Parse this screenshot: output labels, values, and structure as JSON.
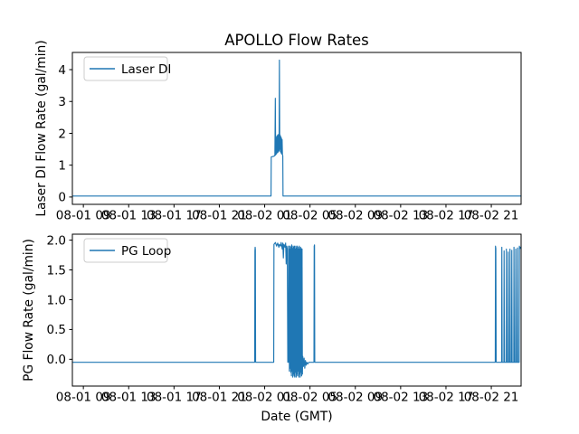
{
  "figure": {
    "title": "APOLLO Flow Rates",
    "xlabel": "Date (GMT)",
    "background_color": "#ffffff",
    "line_color": "#1f77b4",
    "spine_color": "#000000",
    "legend_edge_color": "#cccccc"
  },
  "chart_data": [
    {
      "type": "line",
      "name": "laser-di-subplot",
      "title": "APOLLO Flow Rates",
      "ylabel": "Laser DI Flow Rate (gal/min)",
      "xlabel": "",
      "legend": [
        {
          "label": "Laser DI",
          "color": "#1f77b4"
        }
      ],
      "legend_position": "upper left",
      "grid": false,
      "x_unit": "hours since 08-01 00:00 GMT",
      "xlim": [
        8.03,
        47.63
      ],
      "ylim": [
        -0.23,
        4.54
      ],
      "xticks": [
        9,
        13,
        17,
        21,
        25,
        29,
        33,
        37,
        41,
        45
      ],
      "xtick_labels": [
        "08-01 09",
        "08-01 13",
        "08-01 17",
        "08-01 21",
        "08-02 01",
        "08-02 05",
        "08-02 09",
        "08-02 13",
        "08-02 17",
        "08-02 21"
      ],
      "yticks": [
        0,
        1,
        2,
        3,
        4
      ],
      "ytick_labels": [
        "0",
        "1",
        "2",
        "3",
        "4"
      ],
      "series": [
        {
          "name": "Laser DI",
          "color": "#1f77b4",
          "points": [
            [
              8.03,
              0.03
            ],
            [
              25.56,
              0.03
            ],
            [
              25.58,
              1.26
            ],
            [
              25.8,
              1.28
            ],
            [
              25.9,
              1.3
            ],
            [
              25.94,
              3.1
            ],
            [
              25.97,
              1.32
            ],
            [
              26.0,
              1.85
            ],
            [
              26.03,
              1.35
            ],
            [
              26.06,
              1.9
            ],
            [
              26.09,
              1.38
            ],
            [
              26.12,
              1.93
            ],
            [
              26.15,
              1.4
            ],
            [
              26.18,
              1.96
            ],
            [
              26.21,
              1.42
            ],
            [
              26.24,
              1.9
            ],
            [
              26.27,
              1.45
            ],
            [
              26.3,
              4.3
            ],
            [
              26.33,
              1.5
            ],
            [
              26.36,
              1.95
            ],
            [
              26.39,
              1.42
            ],
            [
              26.42,
              1.9
            ],
            [
              26.45,
              1.38
            ],
            [
              26.48,
              1.85
            ],
            [
              26.51,
              1.35
            ],
            [
              26.54,
              1.8
            ],
            [
              26.57,
              1.32
            ],
            [
              26.6,
              1.3
            ],
            [
              26.62,
              0.03
            ],
            [
              47.63,
              0.03
            ]
          ]
        }
      ]
    },
    {
      "type": "line",
      "name": "pg-loop-subplot",
      "title": "",
      "ylabel": "PG Flow Rate (gal/min)",
      "xlabel": "Date (GMT)",
      "legend": [
        {
          "label": "PG Loop",
          "color": "#1f77b4"
        }
      ],
      "legend_position": "upper left",
      "grid": false,
      "x_unit": "hours since 08-01 00:00 GMT",
      "xlim": [
        8.03,
        47.63
      ],
      "ylim": [
        -0.45,
        2.1
      ],
      "xticks": [
        9,
        13,
        17,
        21,
        25,
        29,
        33,
        37,
        41,
        45
      ],
      "xtick_labels": [
        "08-01 09",
        "08-01 13",
        "08-01 17",
        "08-01 21",
        "08-02 01",
        "08-02 05",
        "08-02 09",
        "08-02 13",
        "08-02 17",
        "08-02 21"
      ],
      "yticks": [
        0.0,
        0.5,
        1.0,
        1.5,
        2.0
      ],
      "ytick_labels": [
        "0.0",
        "0.5",
        "1.0",
        "1.5",
        "2.0"
      ],
      "series": [
        {
          "name": "PG Loop",
          "color": "#1f77b4",
          "points": [
            [
              8.03,
              -0.05
            ],
            [
              24.12,
              -0.05
            ],
            [
              24.14,
              1.82
            ],
            [
              24.16,
              1.88
            ],
            [
              24.18,
              1.84
            ],
            [
              24.2,
              -0.05
            ],
            [
              25.8,
              -0.05
            ],
            [
              25.82,
              1.93
            ],
            [
              25.95,
              1.96
            ],
            [
              26.05,
              1.9
            ],
            [
              26.15,
              1.95
            ],
            [
              26.25,
              1.88
            ],
            [
              26.3,
              1.93
            ],
            [
              26.4,
              1.9
            ],
            [
              26.45,
              1.96
            ],
            [
              26.55,
              1.85
            ],
            [
              26.6,
              1.95
            ],
            [
              26.65,
              1.7
            ],
            [
              26.7,
              1.93
            ],
            [
              26.8,
              1.88
            ],
            [
              26.85,
              1.95
            ],
            [
              26.9,
              1.6
            ],
            [
              26.95,
              1.9
            ],
            [
              27.0,
              1.85
            ],
            [
              27.04,
              -0.05
            ],
            [
              27.09,
              -0.05
            ],
            [
              27.12,
              1.9
            ],
            [
              27.15,
              1.9
            ],
            [
              27.18,
              -0.2
            ],
            [
              27.21,
              1.85
            ],
            [
              27.24,
              -0.15
            ],
            [
              27.27,
              1.9
            ],
            [
              27.3,
              -0.22
            ],
            [
              27.33,
              1.88
            ],
            [
              27.36,
              -0.28
            ],
            [
              27.39,
              1.92
            ],
            [
              27.42,
              -0.2
            ],
            [
              27.45,
              1.86
            ],
            [
              27.48,
              -0.3
            ],
            [
              27.51,
              1.9
            ],
            [
              27.54,
              -0.25
            ],
            [
              27.57,
              1.88
            ],
            [
              27.6,
              -0.28
            ],
            [
              27.63,
              1.9
            ],
            [
              27.66,
              -0.3
            ],
            [
              27.69,
              1.85
            ],
            [
              27.72,
              -0.22
            ],
            [
              27.75,
              1.9
            ],
            [
              27.78,
              -0.3
            ],
            [
              27.81,
              1.87
            ],
            [
              27.84,
              -0.25
            ],
            [
              27.87,
              1.9
            ],
            [
              27.9,
              -0.28
            ],
            [
              27.93,
              1.85
            ],
            [
              27.96,
              -0.2
            ],
            [
              27.99,
              1.88
            ],
            [
              28.02,
              -0.3
            ],
            [
              28.05,
              1.9
            ],
            [
              28.08,
              -0.25
            ],
            [
              28.11,
              1.85
            ],
            [
              28.14,
              -0.3
            ],
            [
              28.17,
              1.88
            ],
            [
              28.2,
              -0.22
            ],
            [
              28.23,
              1.86
            ],
            [
              28.26,
              -0.28
            ],
            [
              28.3,
              1.85
            ],
            [
              28.33,
              -0.25
            ],
            [
              28.36,
              0.05
            ],
            [
              28.42,
              -0.12
            ],
            [
              28.48,
              0.02
            ],
            [
              28.54,
              -0.15
            ],
            [
              28.6,
              -0.02
            ],
            [
              28.66,
              -0.1
            ],
            [
              28.72,
              -0.05
            ],
            [
              28.8,
              -0.08
            ],
            [
              28.9,
              -0.05
            ],
            [
              29.35,
              -0.05
            ],
            [
              29.37,
              1.9
            ],
            [
              29.4,
              1.92
            ],
            [
              29.42,
              -0.05
            ],
            [
              45.35,
              -0.05
            ],
            [
              45.37,
              1.9
            ],
            [
              45.4,
              1.86
            ],
            [
              45.43,
              -0.05
            ],
            [
              45.91,
              -0.05
            ],
            [
              45.93,
              1.88
            ],
            [
              45.96,
              -0.05
            ],
            [
              46.11,
              -0.05
            ],
            [
              46.13,
              1.82
            ],
            [
              46.16,
              -0.05
            ],
            [
              46.31,
              -0.05
            ],
            [
              46.33,
              1.85
            ],
            [
              46.36,
              -0.05
            ],
            [
              46.47,
              -0.05
            ],
            [
              46.49,
              1.8
            ],
            [
              46.52,
              -0.05
            ],
            [
              46.63,
              -0.05
            ],
            [
              46.65,
              1.85
            ],
            [
              46.68,
              -0.05
            ],
            [
              46.79,
              -0.05
            ],
            [
              46.81,
              1.83
            ],
            [
              46.84,
              -0.05
            ],
            [
              46.98,
              -0.05
            ],
            [
              47.0,
              1.88
            ],
            [
              47.03,
              -0.05
            ],
            [
              47.14,
              -0.05
            ],
            [
              47.16,
              1.85
            ],
            [
              47.19,
              -0.05
            ],
            [
              47.3,
              -0.05
            ],
            [
              47.32,
              1.87
            ],
            [
              47.35,
              -0.05
            ],
            [
              47.46,
              -0.05
            ],
            [
              47.48,
              1.9
            ],
            [
              47.52,
              1.86
            ],
            [
              47.58,
              1.88
            ],
            [
              47.63,
              1.85
            ]
          ]
        }
      ]
    }
  ]
}
